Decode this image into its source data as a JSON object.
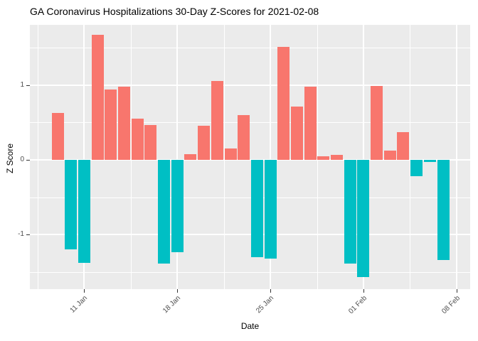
{
  "title": "GA Coronavirus Hospitalizations 30-Day Z-Scores for 2021-02-08",
  "chart_data": {
    "type": "bar",
    "title": "GA Coronavirus Hospitalizations 30-Day Z-Scores for 2021-02-08",
    "xlabel": "Date",
    "ylabel": "Z Score",
    "x": [
      "2021-01-09",
      "2021-01-10",
      "2021-01-11",
      "2021-01-12",
      "2021-01-13",
      "2021-01-14",
      "2021-01-15",
      "2021-01-16",
      "2021-01-17",
      "2021-01-18",
      "2021-01-19",
      "2021-01-20",
      "2021-01-21",
      "2021-01-22",
      "2021-01-23",
      "2021-01-24",
      "2021-01-25",
      "2021-01-26",
      "2021-01-27",
      "2021-01-28",
      "2021-01-29",
      "2021-01-30",
      "2021-01-31",
      "2021-02-01",
      "2021-02-02",
      "2021-02-03",
      "2021-02-04",
      "2021-02-05",
      "2021-02-06",
      "2021-02-07"
    ],
    "values": [
      0.63,
      -1.2,
      -1.38,
      1.67,
      0.94,
      0.98,
      0.55,
      0.47,
      -1.39,
      -1.23,
      0.08,
      0.46,
      1.05,
      0.15,
      0.6,
      -1.3,
      -1.32,
      1.51,
      0.71,
      0.98,
      0.05,
      0.07,
      -1.39,
      -1.57,
      0.99,
      0.12,
      0.37,
      -0.22,
      -0.03,
      -1.34
    ],
    "x_tick_labels": [
      "11 Jan",
      "18 Jan",
      "25 Jan",
      "01 Feb",
      "08 Feb"
    ],
    "x_tick_day_indices": [
      2,
      9,
      16,
      23,
      30
    ],
    "y_tick_labels": [
      "1",
      "0",
      "-1"
    ],
    "y_tick_values": [
      1,
      0,
      -1
    ],
    "y_minor_gridlines": [
      1.5,
      0.5,
      -0.5,
      -1.5
    ],
    "ylim": [
      -1.77,
      1.83
    ],
    "grid": "major+minor white on grey panel",
    "legend": "none",
    "colors": {
      "positive_bar": "#F8766D",
      "negative_bar": "#00BFC4",
      "panel_bg": "#EBEBEB",
      "gridline": "#FFFFFF",
      "tick_text": "#4D4D4D",
      "axis_text": "#000000"
    }
  }
}
